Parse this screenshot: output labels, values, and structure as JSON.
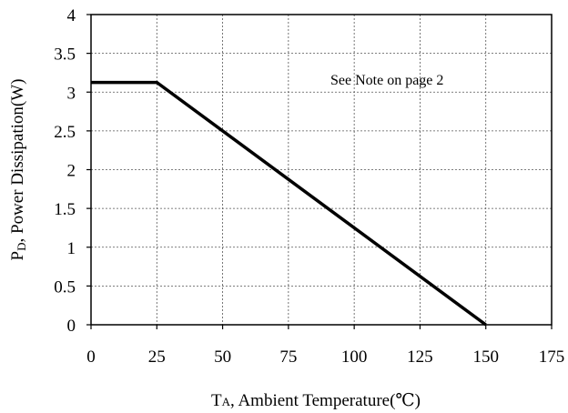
{
  "chart_data": {
    "type": "line",
    "title": "",
    "xlabel_prefix": "T",
    "xlabel_sub": "A",
    "xlabel_rest": ", Ambient Temperature(℃)",
    "ylabel_prefix": "P",
    "ylabel_sub": "D",
    "ylabel_rest": ", Power Dissipation(W)",
    "annotation": "See Note on page 2",
    "xlim": [
      0,
      175
    ],
    "ylim": [
      0,
      4
    ],
    "x_ticks": [
      0,
      25,
      50,
      75,
      100,
      125,
      150,
      175
    ],
    "y_ticks": [
      0,
      0.5,
      1,
      1.5,
      2,
      2.5,
      3,
      3.5,
      4
    ],
    "x_tick_labels": [
      "0",
      "25",
      "50",
      "75",
      "100",
      "125",
      "150",
      "175"
    ],
    "y_tick_labels": [
      "0",
      "0.5",
      "1",
      "1.5",
      "2",
      "2.5",
      "3",
      "3.5",
      "4"
    ],
    "grid": "dashed",
    "legend": "none",
    "line_color": "#000000",
    "series": [
      {
        "x": [
          0,
          25,
          150
        ],
        "y": [
          3.125,
          3.125,
          0
        ]
      }
    ]
  }
}
